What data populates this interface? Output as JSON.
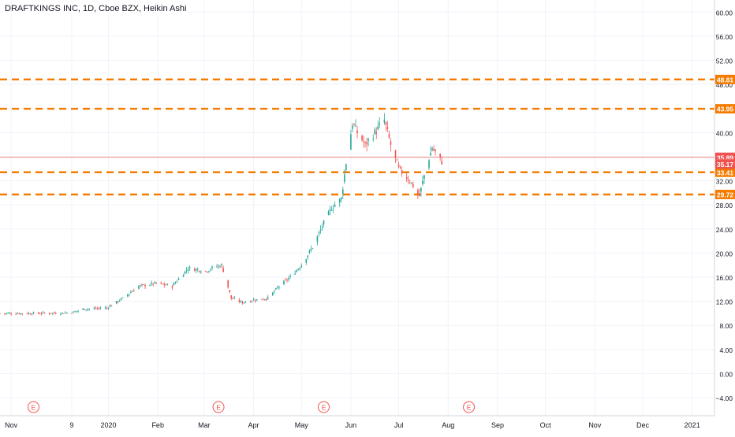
{
  "chart_data": {
    "type": "candlestick",
    "title": "DRAFTKINGS INC, 1D, Cboe BZX, Heikin Ashi",
    "ylim": [
      -7,
      62
    ],
    "y_ticks": [
      "60.00",
      "56.00",
      "52.00",
      "48.00",
      "44.00",
      "40.00",
      "36.00",
      "32.00",
      "28.00",
      "24.00",
      "20.00",
      "16.00",
      "12.00",
      "8.00",
      "4.00",
      "0.00",
      "−4.00"
    ],
    "y_tick_values": [
      60,
      56,
      52,
      48,
      44,
      40,
      36,
      32,
      28,
      24,
      20,
      16,
      12,
      8,
      4,
      0,
      -4
    ],
    "x_ticks": [
      {
        "label": "Nov",
        "date": "2019-11-01"
      },
      {
        "label": "9",
        "date": "2019-12-09"
      },
      {
        "label": "2020",
        "date": "2020-01-01"
      },
      {
        "label": "Feb",
        "date": "2020-02-01"
      },
      {
        "label": "Mar",
        "date": "2020-03-01"
      },
      {
        "label": "Apr",
        "date": "2020-04-01"
      },
      {
        "label": "May",
        "date": "2020-05-01"
      },
      {
        "label": "Jun",
        "date": "2020-06-01"
      },
      {
        "label": "Jul",
        "date": "2020-07-01"
      },
      {
        "label": "Aug",
        "date": "2020-08-01"
      },
      {
        "label": "Sep",
        "date": "2020-09-01"
      },
      {
        "label": "Oct",
        "date": "2020-10-01"
      },
      {
        "label": "Nov",
        "date": "2020-11-01"
      },
      {
        "label": "Dec",
        "date": "2020-12-01"
      },
      {
        "label": "2021",
        "date": "2021-01-01"
      }
    ],
    "date_range": [
      "2019-10-25",
      "2021-01-15"
    ],
    "horizontal_levels": [
      {
        "value": 48.81,
        "label": "48.81",
        "color": "#f57c00",
        "style": "dashed"
      },
      {
        "value": 43.95,
        "label": "43.95",
        "color": "#f57c00",
        "style": "dashed"
      },
      {
        "value": 33.41,
        "label": "33.41",
        "color": "#f57c00",
        "style": "dashed"
      },
      {
        "value": 29.72,
        "label": "29.72",
        "color": "#f57c00",
        "style": "dashed"
      }
    ],
    "last_price": {
      "value": 35.17,
      "label": "35.17",
      "color": "#ef5350"
    },
    "price_line": {
      "value": 35.89,
      "label": "35.89",
      "color": "#ef5350"
    },
    "earnings_markers": [
      {
        "label": "E",
        "date": "2019-11-15"
      },
      {
        "label": "E",
        "date": "2020-03-10"
      },
      {
        "label": "E",
        "date": "2020-05-15"
      },
      {
        "label": "E",
        "date": "2020-08-14"
      }
    ],
    "close_path": [
      {
        "date": "2019-10-25",
        "value": 10.0
      },
      {
        "date": "2019-11-15",
        "value": 10.0
      },
      {
        "date": "2019-12-09",
        "value": 10.1
      },
      {
        "date": "2019-12-16",
        "value": 10.7
      },
      {
        "date": "2019-12-31",
        "value": 10.9
      },
      {
        "date": "2020-01-10",
        "value": 12.5
      },
      {
        "date": "2020-01-20",
        "value": 14.5
      },
      {
        "date": "2020-01-31",
        "value": 15.0
      },
      {
        "date": "2020-02-10",
        "value": 14.5
      },
      {
        "date": "2020-02-20",
        "value": 17.5
      },
      {
        "date": "2020-03-02",
        "value": 17.0
      },
      {
        "date": "2020-03-06",
        "value": 17.5
      },
      {
        "date": "2020-03-12",
        "value": 18.0
      },
      {
        "date": "2020-03-18",
        "value": 12.5
      },
      {
        "date": "2020-03-25",
        "value": 11.8
      },
      {
        "date": "2020-04-01",
        "value": 12.2
      },
      {
        "date": "2020-04-10",
        "value": 12.5
      },
      {
        "date": "2020-04-17",
        "value": 14.5
      },
      {
        "date": "2020-04-24",
        "value": 16.0
      },
      {
        "date": "2020-05-01",
        "value": 18.0
      },
      {
        "date": "2020-05-08",
        "value": 21.0
      },
      {
        "date": "2020-05-15",
        "value": 25.0
      },
      {
        "date": "2020-05-20",
        "value": 27.5
      },
      {
        "date": "2020-05-26",
        "value": 29.0
      },
      {
        "date": "2020-05-29",
        "value": 35.0
      },
      {
        "date": "2020-06-02",
        "value": 41.5
      },
      {
        "date": "2020-06-05",
        "value": 40.0
      },
      {
        "date": "2020-06-10",
        "value": 38.0
      },
      {
        "date": "2020-06-16",
        "value": 40.0
      },
      {
        "date": "2020-06-22",
        "value": 42.0
      },
      {
        "date": "2020-06-26",
        "value": 38.0
      },
      {
        "date": "2020-07-01",
        "value": 34.0
      },
      {
        "date": "2020-07-08",
        "value": 32.0
      },
      {
        "date": "2020-07-14",
        "value": 29.5
      },
      {
        "date": "2020-07-18",
        "value": 34.0
      },
      {
        "date": "2020-07-22",
        "value": 37.5
      },
      {
        "date": "2020-07-28",
        "value": 35.2
      }
    ],
    "colors": {
      "up": "#26a69a",
      "down": "#ef5350",
      "level": "#f57c00",
      "grid": "#f0f3fa",
      "axis_text": "#131722"
    },
    "grid": true
  }
}
